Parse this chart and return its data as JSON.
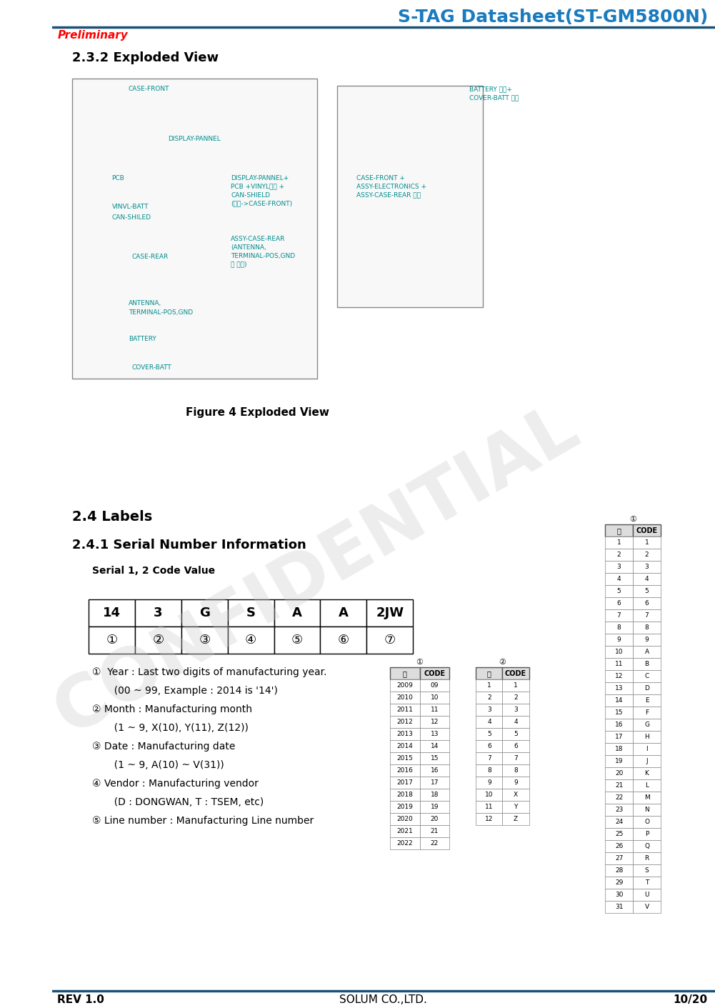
{
  "title": "S-TAG Datasheet(ST-GM5800N)",
  "title_color": "#1a7bbf",
  "preliminary_text": "Preliminary",
  "preliminary_color": "#ff0000",
  "section_232": "2.3.2 Exploded View",
  "figure_caption": "Figure 4 Exploded View",
  "section_24": "2.4 Labels",
  "section_241": "2.4.1 Serial Number Information",
  "serial_label": "Serial 1, 2 Code Value",
  "serial_values": [
    "14",
    "3",
    "G",
    "S",
    "A",
    "A",
    "2JW"
  ],
  "serial_indices": [
    "①",
    "②",
    "③",
    "④",
    "⑤",
    "⑥",
    "⑦"
  ],
  "descriptions": [
    "①  Year : Last two digits of manufacturing year.",
    "       (00 ~ 99, Example : 2014 is '14')",
    "② Month : Manufacturing month",
    "       (1 ~ 9, X(10), Y(11), Z(12))",
    "③ Date : Manufacturing date",
    "       (1 ~ 9, A(10) ~ V(31))",
    "④ Vendor : Manufacturing vendor",
    "       (D : DONGWAN, T : TSEM, etc)",
    "⑤ Line number : Manufacturing Line number"
  ],
  "footer_rev": "REV 1.0",
  "footer_center": "SOLUM CO.,LTD.",
  "footer_page": "10/20",
  "header_line_color": "#1a5276",
  "footer_line_color": "#1a5276",
  "table3_header": [
    "일",
    "CODE"
  ],
  "table3_data": [
    [
      "1",
      "1"
    ],
    [
      "2",
      "2"
    ],
    [
      "3",
      "3"
    ],
    [
      "4",
      "4"
    ],
    [
      "5",
      "5"
    ],
    [
      "6",
      "6"
    ],
    [
      "7",
      "7"
    ],
    [
      "8",
      "8"
    ],
    [
      "9",
      "9"
    ],
    [
      "10",
      "A"
    ],
    [
      "11",
      "B"
    ],
    [
      "12",
      "C"
    ],
    [
      "13",
      "D"
    ],
    [
      "14",
      "E"
    ],
    [
      "15",
      "F"
    ],
    [
      "16",
      "G"
    ],
    [
      "17",
      "H"
    ],
    [
      "18",
      "I"
    ],
    [
      "19",
      "J"
    ],
    [
      "20",
      "K"
    ],
    [
      "21",
      "L"
    ],
    [
      "22",
      "M"
    ],
    [
      "23",
      "N"
    ],
    [
      "24",
      "O"
    ],
    [
      "25",
      "P"
    ],
    [
      "26",
      "Q"
    ],
    [
      "27",
      "R"
    ],
    [
      "28",
      "S"
    ],
    [
      "29",
      "T"
    ],
    [
      "30",
      "U"
    ],
    [
      "31",
      "V"
    ]
  ],
  "table1_header": [
    "년",
    "CODE"
  ],
  "table1_data": [
    [
      "2009",
      "09"
    ],
    [
      "2010",
      "10"
    ],
    [
      "2011",
      "11"
    ],
    [
      "2012",
      "12"
    ],
    [
      "2013",
      "13"
    ],
    [
      "2014",
      "14"
    ],
    [
      "2015",
      "15"
    ],
    [
      "2016",
      "16"
    ],
    [
      "2017",
      "17"
    ],
    [
      "2018",
      "18"
    ],
    [
      "2019",
      "19"
    ],
    [
      "2020",
      "20"
    ],
    [
      "2021",
      "21"
    ],
    [
      "2022",
      "22"
    ]
  ],
  "table2_header": [
    "월",
    "CODE"
  ],
  "table2_data": [
    [
      "1",
      "1"
    ],
    [
      "2",
      "2"
    ],
    [
      "3",
      "3"
    ],
    [
      "4",
      "4"
    ],
    [
      "5",
      "5"
    ],
    [
      "6",
      "6"
    ],
    [
      "7",
      "7"
    ],
    [
      "8",
      "8"
    ],
    [
      "9",
      "9"
    ],
    [
      "10",
      "X"
    ],
    [
      "11",
      "Y"
    ],
    [
      "12",
      "Z"
    ]
  ],
  "confidential_text": "CONFIDENTIAL",
  "confidential_color": "#cccccc",
  "bg_color": "#ffffff"
}
